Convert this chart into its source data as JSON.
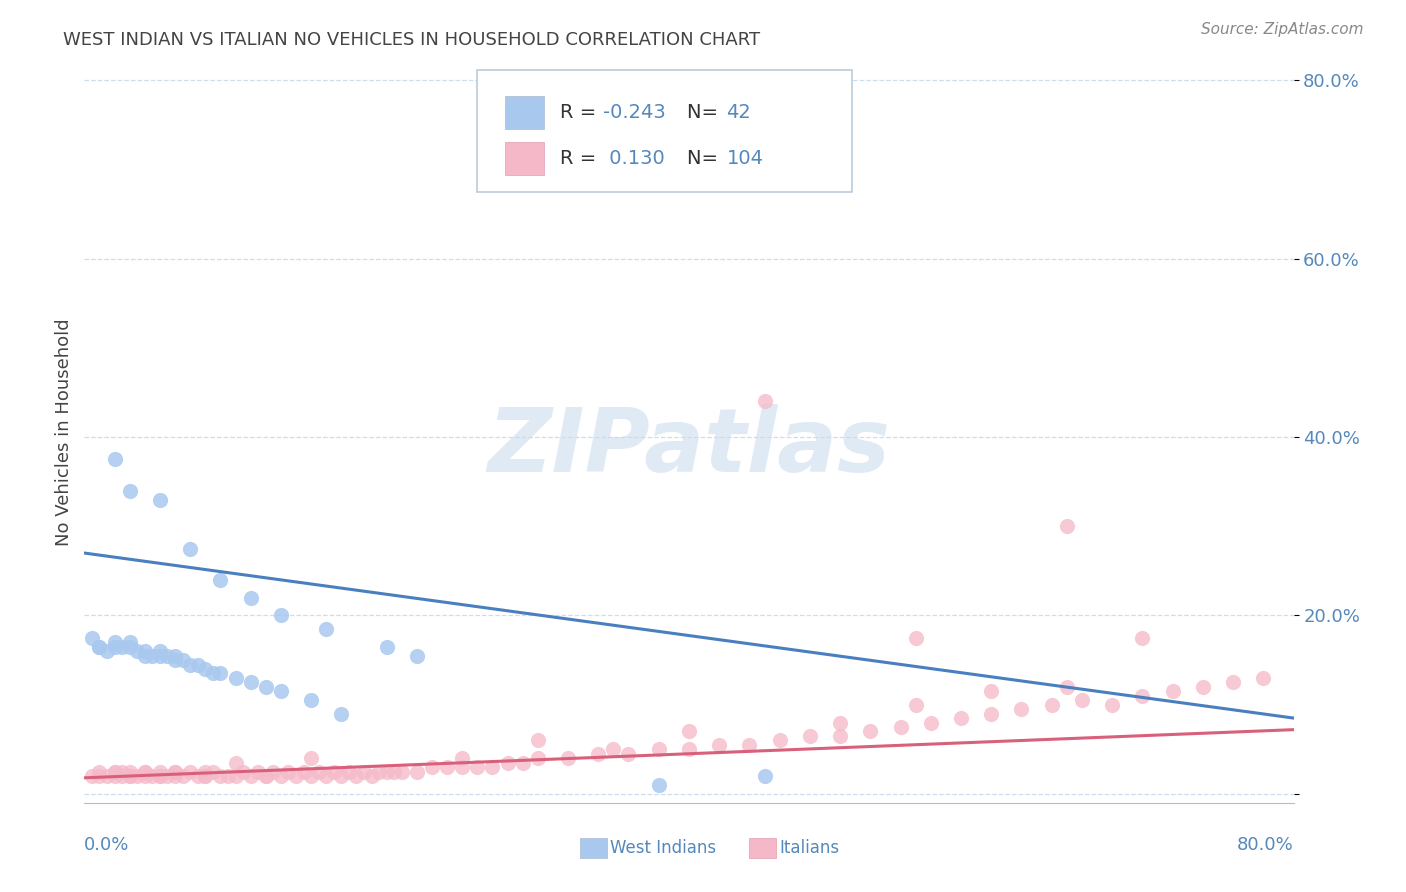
{
  "title": "WEST INDIAN VS ITALIAN NO VEHICLES IN HOUSEHOLD CORRELATION CHART",
  "source": "Source: ZipAtlas.com",
  "ylabel": "No Vehicles in Household",
  "xlim": [
    0.0,
    0.8
  ],
  "ylim": [
    -0.01,
    0.82
  ],
  "ytick_vals": [
    0.0,
    0.2,
    0.4,
    0.6,
    0.8
  ],
  "ytick_labels": [
    "",
    "20.0%",
    "40.0%",
    "60.0%",
    "80.0%"
  ],
  "watermark": "ZIPatlas",
  "r_west_indian": -0.243,
  "n_west_indian": 42,
  "r_italian": 0.13,
  "n_italian": 104,
  "blue_scatter_color": "#A8C8EE",
  "pink_scatter_color": "#F5B8C8",
  "blue_line_color": "#4A7FBF",
  "pink_line_color": "#D9607A",
  "title_color": "#444444",
  "axis_label_color": "#5588BB",
  "grid_color": "#CCDDEE",
  "legend_text_color": "#333333",
  "legend_value_color": "#5588BB",
  "blue_legend_color": "#A8C8EE",
  "pink_legend_color": "#F5B8C8",
  "west_indian_x": [
    0.005,
    0.01,
    0.01,
    0.015,
    0.02,
    0.02,
    0.025,
    0.03,
    0.03,
    0.035,
    0.04,
    0.04,
    0.045,
    0.05,
    0.05,
    0.055,
    0.06,
    0.06,
    0.065,
    0.07,
    0.075,
    0.08,
    0.085,
    0.09,
    0.1,
    0.11,
    0.12,
    0.13,
    0.15,
    0.17,
    0.02,
    0.03,
    0.05,
    0.07,
    0.09,
    0.11,
    0.13,
    0.16,
    0.2,
    0.22,
    0.45,
    0.38
  ],
  "west_indian_y": [
    0.175,
    0.165,
    0.165,
    0.16,
    0.17,
    0.165,
    0.165,
    0.17,
    0.165,
    0.16,
    0.16,
    0.155,
    0.155,
    0.155,
    0.16,
    0.155,
    0.155,
    0.15,
    0.15,
    0.145,
    0.145,
    0.14,
    0.135,
    0.135,
    0.13,
    0.125,
    0.12,
    0.115,
    0.105,
    0.09,
    0.375,
    0.34,
    0.33,
    0.275,
    0.24,
    0.22,
    0.2,
    0.185,
    0.165,
    0.155,
    0.02,
    0.01
  ],
  "italian_x": [
    0.005,
    0.01,
    0.01,
    0.015,
    0.02,
    0.02,
    0.025,
    0.025,
    0.03,
    0.03,
    0.035,
    0.04,
    0.04,
    0.045,
    0.05,
    0.05,
    0.055,
    0.06,
    0.06,
    0.065,
    0.07,
    0.075,
    0.08,
    0.085,
    0.09,
    0.095,
    0.1,
    0.105,
    0.11,
    0.115,
    0.12,
    0.125,
    0.13,
    0.135,
    0.14,
    0.145,
    0.15,
    0.155,
    0.16,
    0.165,
    0.17,
    0.175,
    0.18,
    0.185,
    0.19,
    0.195,
    0.2,
    0.205,
    0.21,
    0.22,
    0.23,
    0.24,
    0.25,
    0.26,
    0.27,
    0.28,
    0.29,
    0.3,
    0.32,
    0.34,
    0.36,
    0.38,
    0.4,
    0.42,
    0.44,
    0.46,
    0.48,
    0.5,
    0.52,
    0.54,
    0.56,
    0.58,
    0.6,
    0.62,
    0.64,
    0.66,
    0.68,
    0.7,
    0.72,
    0.74,
    0.76,
    0.78,
    0.3,
    0.4,
    0.5,
    0.55,
    0.6,
    0.65,
    0.65,
    0.45,
    0.35,
    0.25,
    0.15,
    0.1,
    0.08,
    0.06,
    0.04,
    0.02,
    0.55,
    0.7,
    0.03,
    0.05,
    0.08,
    0.12
  ],
  "italian_y": [
    0.02,
    0.025,
    0.02,
    0.02,
    0.025,
    0.02,
    0.02,
    0.025,
    0.025,
    0.02,
    0.02,
    0.025,
    0.02,
    0.02,
    0.025,
    0.02,
    0.02,
    0.025,
    0.02,
    0.02,
    0.025,
    0.02,
    0.02,
    0.025,
    0.02,
    0.02,
    0.02,
    0.025,
    0.02,
    0.025,
    0.02,
    0.025,
    0.02,
    0.025,
    0.02,
    0.025,
    0.02,
    0.025,
    0.02,
    0.025,
    0.02,
    0.025,
    0.02,
    0.025,
    0.02,
    0.025,
    0.025,
    0.025,
    0.025,
    0.025,
    0.03,
    0.03,
    0.03,
    0.03,
    0.03,
    0.035,
    0.035,
    0.04,
    0.04,
    0.045,
    0.045,
    0.05,
    0.05,
    0.055,
    0.055,
    0.06,
    0.065,
    0.065,
    0.07,
    0.075,
    0.08,
    0.085,
    0.09,
    0.095,
    0.1,
    0.105,
    0.1,
    0.11,
    0.115,
    0.12,
    0.125,
    0.13,
    0.06,
    0.07,
    0.08,
    0.1,
    0.115,
    0.12,
    0.3,
    0.44,
    0.05,
    0.04,
    0.04,
    0.035,
    0.025,
    0.025,
    0.025,
    0.025,
    0.175,
    0.175,
    0.02,
    0.02,
    0.02,
    0.02
  ],
  "blue_line_x0": 0.0,
  "blue_line_y0": 0.27,
  "blue_line_x1": 0.8,
  "blue_line_y1": 0.085,
  "pink_line_x0": 0.0,
  "pink_line_y0": 0.018,
  "pink_line_x1": 0.8,
  "pink_line_y1": 0.072
}
